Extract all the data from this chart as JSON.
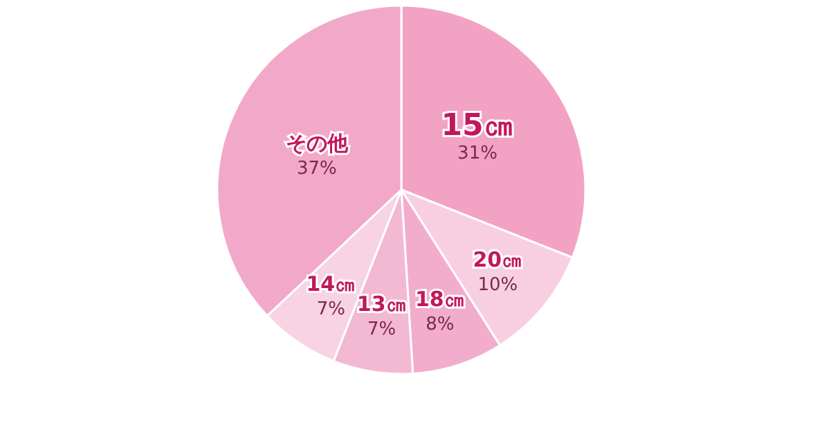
{
  "chart_data": {
    "type": "pie",
    "categories": [
      "15㎝",
      "20㎝",
      "18㎝",
      "13㎝",
      "14㎝",
      "その他"
    ],
    "values": [
      31,
      10,
      8,
      7,
      7,
      37
    ],
    "value_labels": [
      "31%",
      "10%",
      "8%",
      "7%",
      "7%",
      "37%"
    ],
    "colors": [
      "#f2a3c4",
      "#f8cfe1",
      "#f1adcb",
      "#f3b8d2",
      "#f8d3e3",
      "#f2a9c9"
    ]
  }
}
